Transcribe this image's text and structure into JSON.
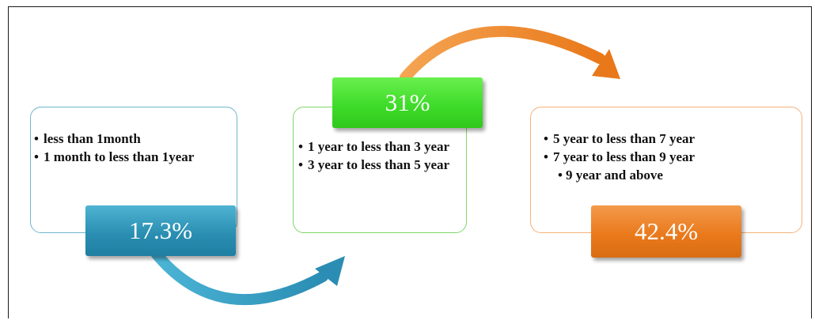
{
  "stages": [
    {
      "percent": "17.3%",
      "items": [
        "less than 1month",
        "1 month to less than 1year"
      ],
      "color": "#2a8fb2"
    },
    {
      "percent": "31%",
      "items": [
        "1 year to less than 3 year",
        "3 year to less than 5 year"
      ],
      "color": "#3fdc2a"
    },
    {
      "percent": "42.4%",
      "items": [
        "5 year to less than 7 year",
        "7 year to less than 9 year",
        "9 year and above"
      ],
      "color": "#ea7a1c"
    }
  ],
  "arrow_colors": {
    "blue": "#3aa3c8",
    "orange": "#ef8a2e"
  }
}
